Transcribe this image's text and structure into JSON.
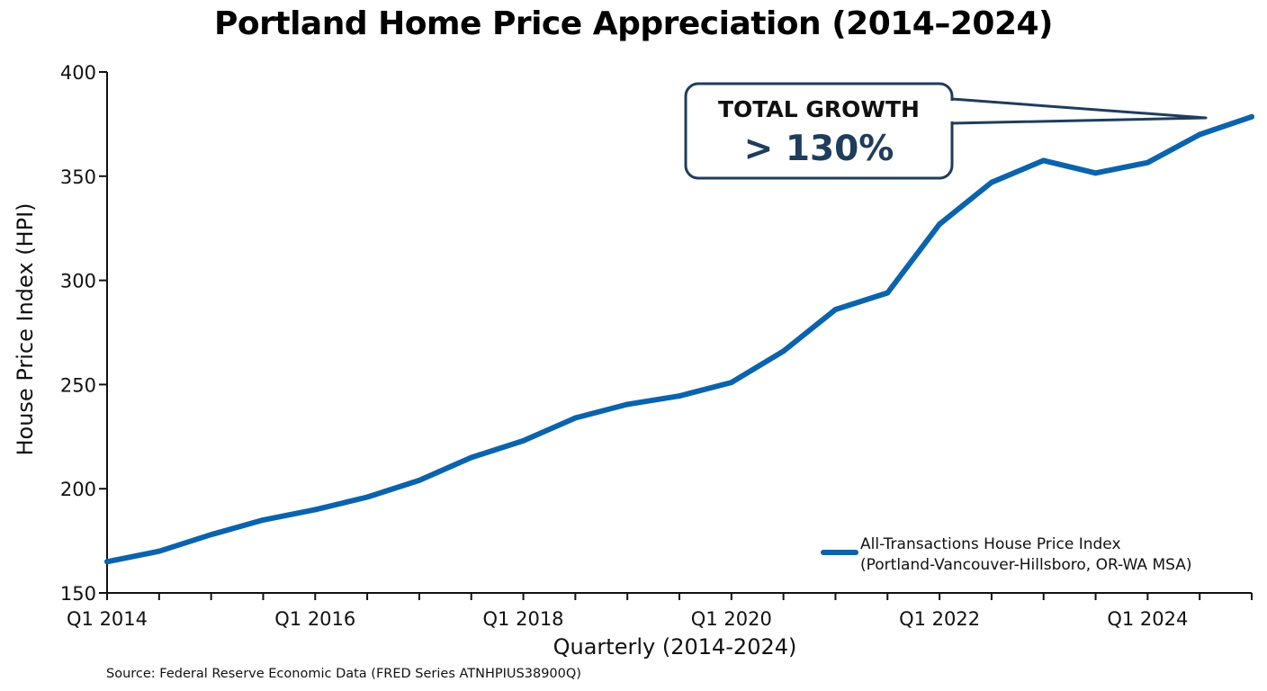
{
  "chart_data": {
    "type": "line",
    "title": "Portland Home Price Appreciation (2014–2024)",
    "xlabel": "Quarterly (2014-2024)",
    "ylabel": "House Price Index (HPI)",
    "ylim": [
      150,
      400
    ],
    "yticks": [
      150,
      200,
      250,
      300,
      350,
      400
    ],
    "x": [
      "Q1 2014",
      "Q3 2014",
      "Q1 2015",
      "Q3 2015",
      "Q1 2016",
      "Q3 2016",
      "Q1 2017",
      "Q3 2017",
      "Q1 2018",
      "Q3 2018",
      "Q1 2019",
      "Q3 2019",
      "Q1 2020",
      "Q3 2020",
      "Q1 2021",
      "Q3 2021",
      "Q1 2022",
      "Q3 2022",
      "Q1 2023",
      "Q3 2023",
      "Q1 2024",
      "Q3 2024",
      "Q1 2025"
    ],
    "xtick_labels": [
      "Q1 2014",
      "Q1 2016",
      "Q1 2018",
      "Q1 2020",
      "Q1 2022",
      "Q1 2024"
    ],
    "series": [
      {
        "name": "All-Transactions House Price Index (Portland-Vancouver-Hillsboro, OR-WA MSA)",
        "legend_lines": [
          "All-Transactions House Price Index",
          "(Portland-Vancouver-Hillsboro, OR-WA MSA)"
        ],
        "color": "#0a63ad",
        "values": [
          165,
          170,
          178,
          185,
          190,
          196,
          204,
          215,
          223,
          234,
          240.5,
          244.5,
          251,
          266,
          286,
          294,
          327,
          347,
          357.5,
          351.5,
          356.5,
          370,
          378.5
        ]
      }
    ],
    "legend_position": "bottom-right",
    "grid": false,
    "annotation": {
      "title": "TOTAL GROWTH",
      "value": "> 130%",
      "points_to": "Q3 2024"
    }
  },
  "source": "Source: Federal Reserve Economic Data (FRED Series ATNHPIUS38900Q)",
  "colors": {
    "line": "#0a63ad",
    "callout_border": "#1f3d5c",
    "callout_value": "#1f3d5c",
    "axis": "#111111"
  }
}
